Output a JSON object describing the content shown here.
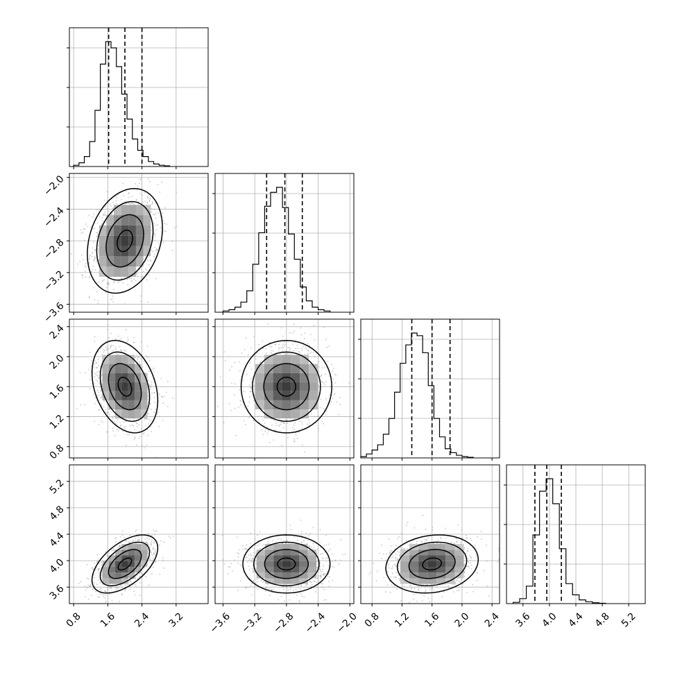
{
  "chart_data": {
    "type": "corner",
    "grid": true,
    "colors": {
      "line": "#000000",
      "grid": "#b0b0b0",
      "scatter": "#9a9a9a"
    },
    "parameters": [
      {
        "index": 0,
        "range": [
          0.7,
          3.95
        ],
        "ticks": [
          "0.8",
          "1.6",
          "2.4",
          "3.2"
        ],
        "quantiles": [
          1.62,
          2.0,
          2.4
        ],
        "hist_x0": 0.8,
        "hist_dx": 0.125,
        "hist": [
          1,
          3,
          8,
          20,
          45,
          82,
          100,
          95,
          80,
          58,
          38,
          22,
          13,
          8,
          4,
          2,
          1,
          0.5
        ]
      },
      {
        "index": 1,
        "range": [
          -3.7,
          -1.95
        ],
        "ticks": [
          "−3.6",
          "−3.2",
          "−2.8",
          "−2.4",
          "−2.0"
        ],
        "quantiles": [
          -3.05,
          -2.82,
          -2.6
        ],
        "hist_x0": -3.6,
        "hist_dx": 0.075,
        "hist": [
          1,
          2,
          4,
          8,
          17,
          38,
          63,
          84,
          95,
          99,
          83,
          62,
          42,
          20,
          9,
          4,
          2,
          1
        ]
      },
      {
        "index": 2,
        "range": [
          0.65,
          2.5
        ],
        "ticks": [
          "0.8",
          "1.2",
          "1.6",
          "2.0",
          "2.4"
        ],
        "quantiles": [
          1.33,
          1.6,
          1.84
        ],
        "hist_x0": 0.65,
        "hist_dx": 0.075,
        "hist": [
          1,
          3,
          6,
          10,
          18,
          30,
          50,
          72,
          86,
          95,
          93,
          80,
          55,
          30,
          16,
          7,
          4,
          2,
          1,
          0.5
        ]
      },
      {
        "index": 3,
        "range": [
          3.35,
          5.45
        ],
        "ticks": [
          "3.6",
          "4.0",
          "4.4",
          "4.8",
          "5.2"
        ],
        "quantiles": [
          3.78,
          3.96,
          4.18
        ],
        "hist_x0": 3.45,
        "hist_dx": 0.1,
        "hist": [
          1,
          4,
          14,
          55,
          90,
          100,
          80,
          44,
          16,
          7,
          3,
          1.5,
          0.7,
          0.3
        ]
      }
    ],
    "pairs": [
      {
        "row": 1,
        "col": 0,
        "mean": [
          2.0,
          -2.8
        ],
        "sd": [
          0.4,
          0.3
        ],
        "corr": 0.25
      },
      {
        "row": 2,
        "col": 0,
        "mean": [
          2.0,
          1.6
        ],
        "sd": [
          0.35,
          0.28
        ],
        "corr": -0.3
      },
      {
        "row": 2,
        "col": 1,
        "mean": [
          -2.8,
          1.6
        ],
        "sd": [
          0.26,
          0.28
        ],
        "corr": 0.0
      },
      {
        "row": 3,
        "col": 0,
        "mean": [
          2.0,
          3.95
        ],
        "sd": [
          0.35,
          0.2
        ],
        "corr": 0.55
      },
      {
        "row": 3,
        "col": 1,
        "mean": [
          -2.8,
          3.95
        ],
        "sd": [
          0.25,
          0.2
        ],
        "corr": 0.0
      },
      {
        "row": 3,
        "col": 2,
        "mean": [
          1.6,
          3.95
        ],
        "sd": [
          0.28,
          0.2
        ],
        "corr": 0.15
      }
    ]
  }
}
